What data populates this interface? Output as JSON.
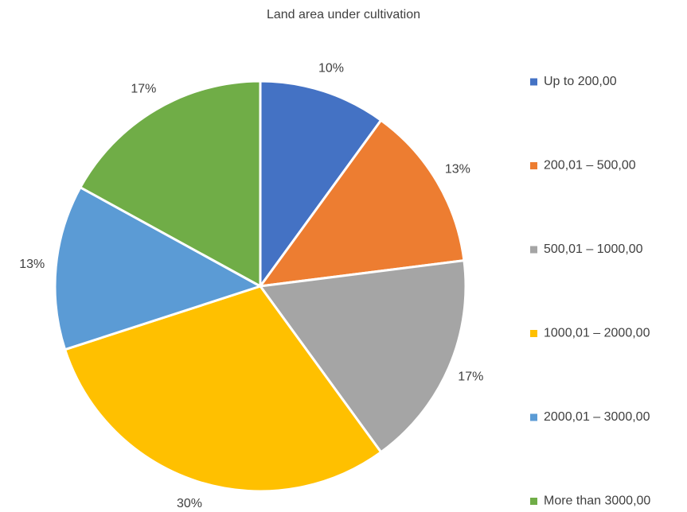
{
  "chart_data": {
    "type": "pie",
    "title": "Land area under cultivation",
    "categories": [
      "Up to 200,00",
      "200,01 – 500,00",
      "500,01 – 1000,00",
      "1000,01 – 2000,00",
      "2000,01 – 3000,00",
      "More than 3000,00"
    ],
    "values": [
      10,
      13,
      17,
      30,
      13,
      17
    ],
    "data_labels": [
      "10%",
      "13%",
      "17%",
      "30%",
      "13%",
      "17%"
    ],
    "colors": [
      "#4472C4",
      "#ED7D31",
      "#A5A5A5",
      "#FFC000",
      "#5B9BD5",
      "#70AD47"
    ],
    "legend_position": "right",
    "start_angle": "12 o'clock, clockwise"
  }
}
